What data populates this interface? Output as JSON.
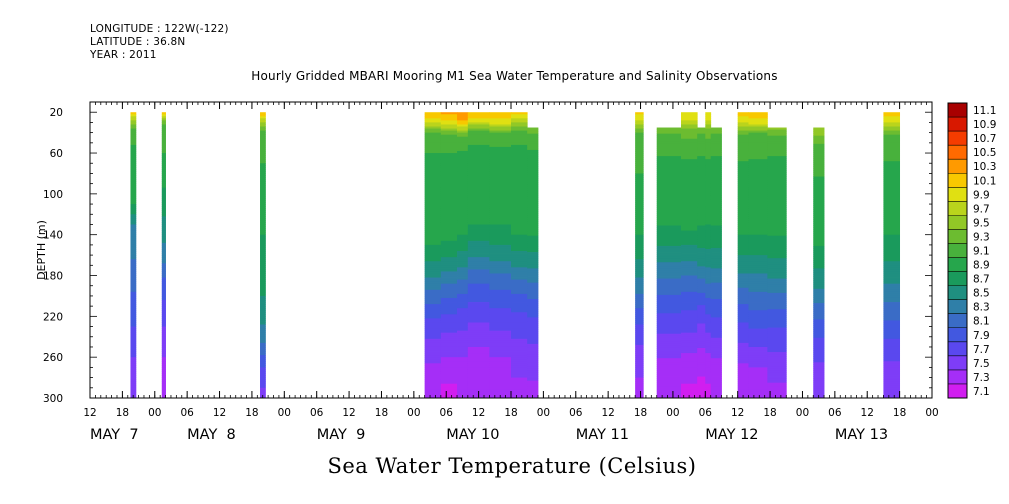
{
  "header": {
    "longitude": "LONGITUDE : 122W(-122)",
    "latitude": "LATITUDE : 36.8N",
    "year": "YEAR : 2011"
  },
  "chart_data": {
    "type": "heatmap",
    "title": "Hourly Gridded MBARI Mooring M1 Sea Water Temperature and Salinity Observations",
    "ylabel": "DEPTH (m)",
    "xlabel": "Sea Water Temperature (Celsius)",
    "x_units": "hours since MAY 7 00:00 (2011)",
    "xlim": [
      12,
      168
    ],
    "ylim": [
      300,
      10
    ],
    "y_reversed": true,
    "y_ticks": [
      20,
      60,
      100,
      140,
      180,
      220,
      260,
      300
    ],
    "x_ticks": [
      12,
      18,
      24,
      30,
      36,
      42,
      48,
      54,
      60,
      66,
      72,
      78,
      84,
      90,
      96,
      102,
      108,
      114,
      120,
      126,
      132,
      138,
      144,
      150,
      156,
      162,
      168
    ],
    "x_tick_labels": [
      "12",
      "18",
      "00",
      "06",
      "12",
      "18",
      "00",
      "06",
      "12",
      "18",
      "00",
      "06",
      "12",
      "18",
      "00",
      "06",
      "12",
      "18",
      "00",
      "06",
      "12",
      "18",
      "00",
      "06",
      "12",
      "18",
      "00"
    ],
    "date_labels": [
      {
        "label": "MAY  7",
        "hour": 12
      },
      {
        "label": "MAY  8",
        "hour": 30
      },
      {
        "label": "MAY  9",
        "hour": 54
      },
      {
        "label": "MAY 10",
        "hour": 78
      },
      {
        "label": "MAY 11",
        "hour": 102
      },
      {
        "label": "MAY 12",
        "hour": 126
      },
      {
        "label": "MAY 13",
        "hour": 150
      }
    ],
    "colorbar": {
      "levels": [
        7.1,
        7.3,
        7.5,
        7.7,
        7.9,
        8.1,
        8.3,
        8.5,
        8.7,
        8.9,
        9.1,
        9.3,
        9.5,
        9.7,
        9.9,
        10.1,
        10.3,
        10.5,
        10.7,
        10.9,
        11.1
      ],
      "colors": [
        "#d11ef0",
        "#a52ef7",
        "#7e3df7",
        "#5a48ef",
        "#4258e0",
        "#3a6cc6",
        "#2f7fa8",
        "#1f8f80",
        "#1a9a5c",
        "#26a64c",
        "#48b13c",
        "#6cbc30",
        "#92c826",
        "#bad41c",
        "#e0e012",
        "#f8c800",
        "#ff9a00",
        "#ff6a00",
        "#f53c00",
        "#d81800",
        "#a80000"
      ]
    },
    "segments": [
      {
        "start": 19.5,
        "end": 20.5,
        "top_depth": 20,
        "profile": [
          [
            20,
            10.2
          ],
          [
            24,
            9.9
          ],
          [
            35,
            9.3
          ],
          [
            60,
            9.0
          ],
          [
            110,
            8.9
          ],
          [
            130,
            8.5
          ],
          [
            180,
            8.2
          ],
          [
            230,
            7.9
          ],
          [
            260,
            7.7
          ],
          [
            300,
            7.5
          ]
        ]
      },
      {
        "start": 25.3,
        "end": 26.0,
        "top_depth": 20,
        "profile": [
          [
            20,
            10.2
          ],
          [
            24,
            9.8
          ],
          [
            32,
            9.3
          ],
          [
            60,
            9.1
          ],
          [
            110,
            8.8
          ],
          [
            160,
            8.4
          ],
          [
            190,
            8.0
          ],
          [
            230,
            7.7
          ],
          [
            260,
            7.5
          ],
          [
            300,
            7.3
          ]
        ]
      },
      {
        "start": 43.5,
        "end": 44.5,
        "top_depth": 20,
        "profile": [
          [
            20,
            10.3
          ],
          [
            26,
            9.9
          ],
          [
            40,
            9.2
          ],
          [
            100,
            9.0
          ],
          [
            140,
            8.9
          ],
          [
            180,
            8.8
          ],
          [
            220,
            8.6
          ],
          [
            245,
            8.3
          ],
          [
            270,
            7.9
          ],
          [
            300,
            7.6
          ]
        ]
      },
      {
        "start": 74.0,
        "end": 77.0,
        "top_depth": 20,
        "profile": [
          [
            20,
            10.3
          ],
          [
            28,
            10.0
          ],
          [
            40,
            9.3
          ],
          [
            70,
            9.0
          ],
          [
            150,
            8.9
          ],
          [
            175,
            8.6
          ],
          [
            200,
            8.2
          ],
          [
            230,
            7.8
          ],
          [
            265,
            7.5
          ],
          [
            300,
            7.3
          ]
        ]
      },
      {
        "start": 77.0,
        "end": 80.0,
        "top_depth": 20,
        "profile": [
          [
            20,
            10.4
          ],
          [
            30,
            10.0
          ],
          [
            42,
            9.3
          ],
          [
            70,
            9.0
          ],
          [
            145,
            8.9
          ],
          [
            170,
            8.6
          ],
          [
            195,
            8.2
          ],
          [
            225,
            7.8
          ],
          [
            260,
            7.5
          ],
          [
            300,
            7.2
          ]
        ]
      },
      {
        "start": 80.0,
        "end": 82.0,
        "top_depth": 20,
        "profile": [
          [
            20,
            10.5
          ],
          [
            28,
            10.3
          ],
          [
            34,
            9.9
          ],
          [
            45,
            9.2
          ],
          [
            70,
            9.0
          ],
          [
            140,
            8.9
          ],
          [
            165,
            8.6
          ],
          [
            190,
            8.2
          ],
          [
            220,
            7.8
          ],
          [
            260,
            7.5
          ],
          [
            300,
            7.3
          ]
        ]
      },
      {
        "start": 82.0,
        "end": 86.0,
        "top_depth": 20,
        "profile": [
          [
            20,
            10.3
          ],
          [
            28,
            10.0
          ],
          [
            38,
            9.3
          ],
          [
            60,
            9.0
          ],
          [
            130,
            8.9
          ],
          [
            155,
            8.6
          ],
          [
            180,
            8.2
          ],
          [
            215,
            7.8
          ],
          [
            250,
            7.5
          ],
          [
            300,
            7.3
          ]
        ]
      },
      {
        "start": 86.0,
        "end": 90.0,
        "top_depth": 20,
        "profile": [
          [
            20,
            10.3
          ],
          [
            30,
            10.0
          ],
          [
            40,
            9.3
          ],
          [
            60,
            9.0
          ],
          [
            130,
            8.9
          ],
          [
            160,
            8.6
          ],
          [
            185,
            8.2
          ],
          [
            220,
            7.8
          ],
          [
            260,
            7.5
          ],
          [
            300,
            7.4
          ]
        ]
      },
      {
        "start": 90.0,
        "end": 93.0,
        "top_depth": 20,
        "profile": [
          [
            20,
            10.2
          ],
          [
            26,
            9.9
          ],
          [
            38,
            9.3
          ],
          [
            60,
            9.0
          ],
          [
            140,
            8.9
          ],
          [
            165,
            8.6
          ],
          [
            190,
            8.2
          ],
          [
            225,
            7.8
          ],
          [
            260,
            7.6
          ],
          [
            300,
            7.4
          ]
        ]
      },
      {
        "start": 93.0,
        "end": 95.0,
        "top_depth": 35,
        "profile": [
          [
            35,
            9.5
          ],
          [
            45,
            9.2
          ],
          [
            70,
            9.0
          ],
          [
            140,
            8.9
          ],
          [
            165,
            8.6
          ],
          [
            195,
            8.2
          ],
          [
            230,
            7.8
          ],
          [
            265,
            7.6
          ],
          [
            300,
            7.4
          ]
        ]
      },
      {
        "start": 113.0,
        "end": 114.5,
        "top_depth": 20,
        "profile": [
          [
            20,
            10.2
          ],
          [
            28,
            9.9
          ],
          [
            40,
            9.3
          ],
          [
            100,
            9.0
          ],
          [
            140,
            8.9
          ],
          [
            175,
            8.6
          ],
          [
            205,
            8.2
          ],
          [
            235,
            7.8
          ],
          [
            260,
            7.6
          ],
          [
            300,
            7.4
          ]
        ]
      },
      {
        "start": 117.0,
        "end": 121.5,
        "top_depth": 35,
        "profile": [
          [
            35,
            9.5
          ],
          [
            45,
            9.2
          ],
          [
            80,
            9.0
          ],
          [
            130,
            8.9
          ],
          [
            160,
            8.6
          ],
          [
            190,
            8.2
          ],
          [
            225,
            7.8
          ],
          [
            260,
            7.5
          ],
          [
            300,
            7.3
          ]
        ]
      },
      {
        "start": 121.5,
        "end": 124.5,
        "top_depth": 20,
        "profile": [
          [
            20,
            10.1
          ],
          [
            28,
            9.9
          ],
          [
            36,
            9.5
          ],
          [
            50,
            9.2
          ],
          [
            80,
            9.0
          ],
          [
            135,
            8.9
          ],
          [
            165,
            8.5
          ],
          [
            195,
            8.1
          ],
          [
            225,
            7.8
          ],
          [
            255,
            7.5
          ],
          [
            300,
            7.2
          ]
        ]
      },
      {
        "start": 124.5,
        "end": 126.0,
        "top_depth": 35,
        "profile": [
          [
            35,
            9.5
          ],
          [
            45,
            9.2
          ],
          [
            80,
            9.0
          ],
          [
            130,
            8.9
          ],
          [
            165,
            8.6
          ],
          [
            190,
            8.2
          ],
          [
            215,
            7.8
          ],
          [
            250,
            7.5
          ],
          [
            300,
            7.15
          ]
        ]
      },
      {
        "start": 126.0,
        "end": 127.0,
        "top_depth": 20,
        "profile": [
          [
            20,
            10.1
          ],
          [
            28,
            9.9
          ],
          [
            36,
            9.5
          ],
          [
            50,
            9.2
          ],
          [
            80,
            9.0
          ],
          [
            130,
            8.9
          ],
          [
            165,
            8.6
          ],
          [
            195,
            8.2
          ],
          [
            225,
            7.8
          ],
          [
            255,
            7.5
          ],
          [
            300,
            7.2
          ]
        ]
      },
      {
        "start": 127.0,
        "end": 129.0,
        "top_depth": 35,
        "profile": [
          [
            35,
            9.5
          ],
          [
            45,
            9.2
          ],
          [
            80,
            9.0
          ],
          [
            130,
            8.9
          ],
          [
            165,
            8.6
          ],
          [
            195,
            8.2
          ],
          [
            230,
            7.8
          ],
          [
            260,
            7.5
          ],
          [
            300,
            7.3
          ]
        ]
      },
      {
        "start": 132.0,
        "end": 134.0,
        "top_depth": 20,
        "profile": [
          [
            20,
            10.2
          ],
          [
            30,
            9.9
          ],
          [
            42,
            9.3
          ],
          [
            80,
            9.0
          ],
          [
            140,
            8.9
          ],
          [
            170,
            8.6
          ],
          [
            200,
            8.2
          ],
          [
            235,
            7.8
          ],
          [
            265,
            7.5
          ],
          [
            300,
            7.3
          ]
        ]
      },
      {
        "start": 134.0,
        "end": 137.5,
        "top_depth": 20,
        "profile": [
          [
            20,
            10.3
          ],
          [
            30,
            10.0
          ],
          [
            40,
            9.3
          ],
          [
            80,
            9.0
          ],
          [
            140,
            8.9
          ],
          [
            170,
            8.6
          ],
          [
            205,
            8.2
          ],
          [
            240,
            7.8
          ],
          [
            270,
            7.5
          ],
          [
            300,
            7.3
          ]
        ]
      },
      {
        "start": 137.5,
        "end": 141.0,
        "top_depth": 35,
        "profile": [
          [
            35,
            9.6
          ],
          [
            45,
            9.2
          ],
          [
            80,
            9.0
          ],
          [
            140,
            8.9
          ],
          [
            175,
            8.6
          ],
          [
            205,
            8.2
          ],
          [
            240,
            7.8
          ],
          [
            270,
            7.6
          ],
          [
            300,
            7.4
          ]
        ]
      },
      {
        "start": 146.0,
        "end": 148.0,
        "top_depth": 35,
        "profile": [
          [
            35,
            9.7
          ],
          [
            50,
            9.3
          ],
          [
            100,
            9.0
          ],
          [
            150,
            8.9
          ],
          [
            185,
            8.6
          ],
          [
            215,
            8.2
          ],
          [
            250,
            7.8
          ],
          [
            280,
            7.6
          ],
          [
            300,
            7.5
          ]
        ]
      },
      {
        "start": 159.0,
        "end": 162.0,
        "top_depth": 20,
        "profile": [
          [
            20,
            10.2
          ],
          [
            30,
            9.9
          ],
          [
            42,
            9.3
          ],
          [
            80,
            9.0
          ],
          [
            140,
            8.9
          ],
          [
            180,
            8.6
          ],
          [
            215,
            8.2
          ],
          [
            250,
            7.8
          ],
          [
            280,
            7.6
          ],
          [
            300,
            7.5
          ]
        ]
      }
    ]
  }
}
